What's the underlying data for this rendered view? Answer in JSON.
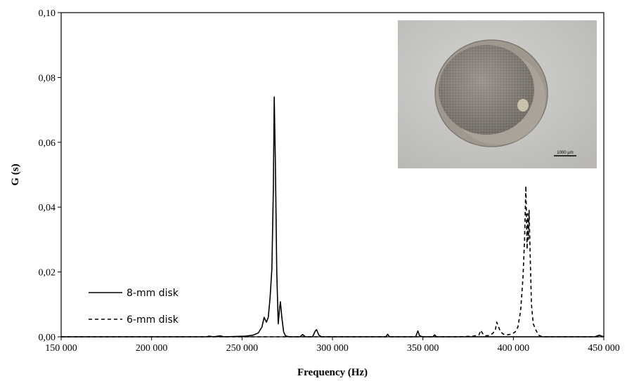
{
  "chart_data": {
    "type": "line",
    "xlabel": "Frequency (Hz)",
    "ylabel": "G (s)",
    "xlim": [
      150000,
      450000
    ],
    "ylim": [
      0,
      0.1
    ],
    "x_ticks": [
      150000,
      200000,
      250000,
      300000,
      350000,
      400000,
      450000
    ],
    "x_tick_labels": [
      "150 000",
      "200 000",
      "250 000",
      "300 000",
      "350 000",
      "400 000",
      "450 000"
    ],
    "y_ticks": [
      0,
      0.02,
      0.04,
      0.06,
      0.08,
      0.1
    ],
    "y_tick_labels": [
      "0,00",
      "0,02",
      "0,04",
      "0,06",
      "0,08",
      "0,10"
    ],
    "grid": false,
    "legend_position": "bottom-left",
    "series": [
      {
        "name": "8-mm disk",
        "style": "solid",
        "color": "#000000",
        "points": [
          [
            150000,
            0
          ],
          [
            230000,
            0
          ],
          [
            232000,
            0.0002
          ],
          [
            234000,
            0
          ],
          [
            238000,
            0.0003
          ],
          [
            240000,
            0
          ],
          [
            252000,
            0.0002
          ],
          [
            256000,
            0.0005
          ],
          [
            259000,
            0.0012
          ],
          [
            261000,
            0.003
          ],
          [
            262200,
            0.006
          ],
          [
            263500,
            0.0045
          ],
          [
            264500,
            0.006
          ],
          [
            265500,
            0.012
          ],
          [
            266500,
            0.021
          ],
          [
            267300,
            0.045
          ],
          [
            267800,
            0.074
          ],
          [
            268400,
            0.055
          ],
          [
            269200,
            0.02
          ],
          [
            270000,
            0.004
          ],
          [
            270800,
            0.009
          ],
          [
            271200,
            0.0108
          ],
          [
            272000,
            0.006
          ],
          [
            273000,
            0.0015
          ],
          [
            274000,
            0.0003
          ],
          [
            276000,
            0
          ],
          [
            282000,
            0
          ],
          [
            283500,
            0.0007
          ],
          [
            285000,
            0
          ],
          [
            289000,
            0
          ],
          [
            290500,
            0.0018
          ],
          [
            291200,
            0.0022
          ],
          [
            292500,
            0.0005
          ],
          [
            294000,
            0
          ],
          [
            329500,
            0
          ],
          [
            330500,
            0.0008
          ],
          [
            331500,
            0
          ],
          [
            346000,
            0
          ],
          [
            347200,
            0.0018
          ],
          [
            348200,
            0.0003
          ],
          [
            350000,
            0
          ],
          [
            355500,
            0
          ],
          [
            356500,
            0.0006
          ],
          [
            357500,
            0
          ],
          [
            420000,
            0
          ],
          [
            445000,
            0
          ],
          [
            447500,
            0.0005
          ],
          [
            449000,
            0.0002
          ],
          [
            450000,
            0
          ]
        ]
      },
      {
        "name": "6-mm disk",
        "style": "dashed",
        "color": "#000000",
        "points": [
          [
            150000,
            0
          ],
          [
            370000,
            0
          ],
          [
            378000,
            0.0002
          ],
          [
            381000,
            0.0006
          ],
          [
            382000,
            0.002
          ],
          [
            383000,
            0.001
          ],
          [
            384500,
            0.0003
          ],
          [
            386500,
            0.0004
          ],
          [
            388500,
            0.001
          ],
          [
            390000,
            0.002
          ],
          [
            390800,
            0.0045
          ],
          [
            391500,
            0.0035
          ],
          [
            392200,
            0.0025
          ],
          [
            393000,
            0.0015
          ],
          [
            394500,
            0.0008
          ],
          [
            396500,
            0.0006
          ],
          [
            399000,
            0.0008
          ],
          [
            401000,
            0.0015
          ],
          [
            402500,
            0.003
          ],
          [
            404000,
            0.008
          ],
          [
            405300,
            0.018
          ],
          [
            406200,
            0.03
          ],
          [
            406900,
            0.0465
          ],
          [
            407300,
            0.035
          ],
          [
            407600,
            0.027
          ],
          [
            407900,
            0.038
          ],
          [
            408300,
            0.03
          ],
          [
            408700,
            0.039
          ],
          [
            409300,
            0.025
          ],
          [
            410000,
            0.01
          ],
          [
            411000,
            0.004
          ],
          [
            412500,
            0.002
          ],
          [
            414000,
            0.0005
          ],
          [
            416000,
            0
          ],
          [
            450000,
            0
          ]
        ]
      }
    ]
  },
  "inset": {
    "scale_bar_label": "1000 µm",
    "colors": {
      "background": "#c9c9c7",
      "rim": "#9a948c",
      "disk": "#87827b"
    }
  }
}
